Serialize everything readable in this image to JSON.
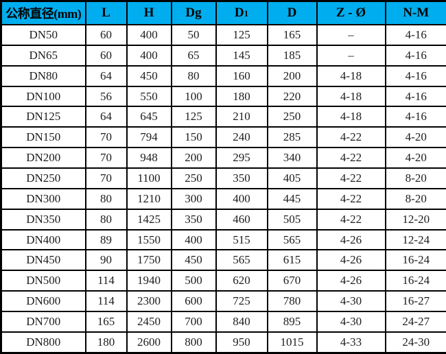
{
  "colors": {
    "header_bg": "#00AEEF",
    "header_text": "#000000",
    "cell_text": "#1d1d1d",
    "grid": "#000000",
    "row_bg": "#ffffff"
  },
  "table": {
    "headers": [
      {
        "label": "公称直径(mm)"
      },
      {
        "label": "L"
      },
      {
        "label": "H"
      },
      {
        "label": "Dg"
      },
      {
        "label": "D",
        "small": "1"
      },
      {
        "label": "D"
      },
      {
        "label": "Z - Ø"
      },
      {
        "label": "N-M"
      }
    ],
    "rows": [
      [
        "DN50",
        "60",
        "400",
        "50",
        "125",
        "165",
        "–",
        "4-16"
      ],
      [
        "DN65",
        "60",
        "400",
        "65",
        "145",
        "185",
        "–",
        "4-16"
      ],
      [
        "DN80",
        "64",
        "450",
        "80",
        "160",
        "200",
        "4-18",
        "4-16"
      ],
      [
        "DN100",
        "56",
        "550",
        "100",
        "180",
        "220",
        "4-18",
        "4-16"
      ],
      [
        "DN125",
        "64",
        "645",
        "125",
        "210",
        "250",
        "4-18",
        "4-16"
      ],
      [
        "DN150",
        "70",
        "794",
        "150",
        "240",
        "285",
        "4-22",
        "4-20"
      ],
      [
        "DN200",
        "70",
        "948",
        "200",
        "295",
        "340",
        "4-22",
        "4-20"
      ],
      [
        "DN250",
        "70",
        "1100",
        "250",
        "350",
        "405",
        "4-22",
        "8-20"
      ],
      [
        "DN300",
        "80",
        "1210",
        "300",
        "400",
        "445",
        "4-22",
        "8-20"
      ],
      [
        "DN350",
        "80",
        "1425",
        "350",
        "460",
        "505",
        "4-22",
        "12-20"
      ],
      [
        "DN400",
        "89",
        "1550",
        "400",
        "515",
        "565",
        "4-26",
        "12-24"
      ],
      [
        "DN450",
        "90",
        "1750",
        "450",
        "565",
        "615",
        "4-26",
        "16-24"
      ],
      [
        "DN500",
        "114",
        "1940",
        "500",
        "620",
        "670",
        "4-26",
        "16-24"
      ],
      [
        "DN600",
        "114",
        "2300",
        "600",
        "725",
        "780",
        "4-30",
        "16-27"
      ],
      [
        "DN700",
        "165",
        "2450",
        "700",
        "840",
        "895",
        "4-30",
        "24-27"
      ],
      [
        "DN800",
        "180",
        "2600",
        "800",
        "950",
        "1015",
        "4-33",
        "24-30"
      ]
    ]
  }
}
